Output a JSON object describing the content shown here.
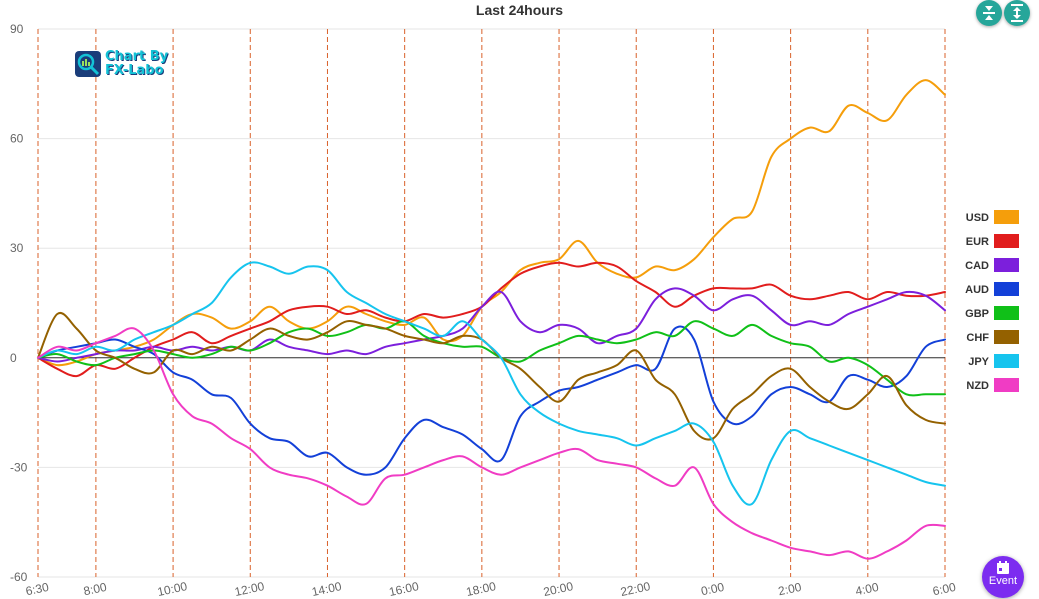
{
  "chart_data": {
    "type": "line",
    "title": "Last 24hours",
    "xlabel": "",
    "ylabel": "",
    "ylim": [
      -60,
      90
    ],
    "yticks": [
      -60,
      -30,
      0,
      30,
      60,
      90
    ],
    "grid": true,
    "legend_position": "right",
    "x": [
      0,
      0.5,
      1,
      1.5,
      2,
      2.5,
      3,
      3.5,
      4,
      4.5,
      5,
      5.5,
      6,
      6.5,
      7,
      7.5,
      8,
      8.5,
      9,
      9.5,
      10,
      10.5,
      11,
      11.5,
      12,
      12.5,
      13,
      13.5,
      14,
      14.5,
      15,
      15.5,
      16,
      16.5,
      17,
      17.5,
      18,
      18.5,
      19,
      19.5,
      20,
      20.5,
      21,
      21.5,
      22,
      22.5,
      23,
      23.5
    ],
    "x_tick_labels": [
      {
        "label": "6:30",
        "x": 0
      },
      {
        "label": "8:00",
        "x": 1.5
      },
      {
        "label": "10:00",
        "x": 3.5
      },
      {
        "label": "12:00",
        "x": 5.5
      },
      {
        "label": "14:00",
        "x": 7.5
      },
      {
        "label": "16:00",
        "x": 9.5
      },
      {
        "label": "18:00",
        "x": 11.5
      },
      {
        "label": "20:00",
        "x": 13.5
      },
      {
        "label": "22:00",
        "x": 15.5
      },
      {
        "label": "0:00",
        "x": 17.5
      },
      {
        "label": "2:00",
        "x": 19.5
      },
      {
        "label": "4:00",
        "x": 21.5
      },
      {
        "label": "6:00",
        "x": 23.5
      }
    ],
    "series": [
      {
        "name": "USD",
        "color": "#f59e0b",
        "values": [
          0,
          -2,
          -1,
          1,
          2,
          3,
          5,
          9,
          12,
          11,
          8,
          10,
          14,
          10,
          8,
          10,
          14,
          12,
          10,
          9,
          11,
          5,
          6,
          14,
          18,
          24,
          26,
          27,
          32,
          26,
          23,
          22,
          25,
          24,
          27,
          33,
          38,
          40,
          55,
          60,
          63,
          62,
          69,
          67,
          65,
          72,
          76,
          72
        ]
      },
      {
        "name": "EUR",
        "color": "#e11d1d",
        "values": [
          0,
          -3,
          -5,
          -2,
          -3,
          0,
          3,
          5,
          7,
          4,
          6,
          8,
          10,
          13,
          14,
          14,
          12,
          13,
          11,
          10,
          12,
          11,
          12,
          14,
          19,
          23,
          25,
          26,
          25,
          26,
          25,
          21,
          18,
          14,
          17,
          19,
          19,
          19,
          20,
          17,
          16,
          17,
          18,
          16,
          18,
          17,
          17,
          18
        ]
      },
      {
        "name": "CAD",
        "color": "#7c1fdc",
        "values": [
          0,
          -1,
          0,
          1,
          2,
          2,
          3,
          2,
          3,
          2,
          3,
          2,
          5,
          3,
          2,
          1,
          2,
          1,
          3,
          4,
          5,
          6,
          8,
          14,
          18,
          10,
          7,
          9,
          8,
          4,
          6,
          8,
          16,
          19,
          17,
          13,
          16,
          17,
          13,
          9,
          10,
          9,
          12,
          14,
          16,
          18,
          17,
          13
        ]
      },
      {
        "name": "AUD",
        "color": "#1340d8",
        "values": [
          0,
          2,
          3,
          4,
          5,
          3,
          1,
          -4,
          -6,
          -10,
          -11,
          -18,
          -22,
          -23,
          -27,
          -26,
          -30,
          -32,
          -30,
          -22,
          -17,
          -19,
          -21,
          -25,
          -28,
          -16,
          -12,
          -9,
          -8,
          -6,
          -4,
          -2,
          -3,
          8,
          5,
          -12,
          -18,
          -16,
          -10,
          -8,
          -10,
          -12,
          -5,
          -6,
          -8,
          -5,
          3,
          5
        ]
      },
      {
        "name": "GBP",
        "color": "#10c018",
        "values": [
          0,
          1,
          -1,
          -2,
          0,
          1,
          2,
          1,
          0,
          1,
          3,
          2,
          4,
          7,
          8,
          6,
          7,
          9,
          8,
          10,
          6,
          4,
          3,
          3,
          0,
          -1,
          2,
          4,
          6,
          5,
          4,
          5,
          7,
          6,
          10,
          8,
          6,
          9,
          6,
          4,
          3,
          -1,
          0,
          -2,
          -6,
          -10,
          -10,
          -10
        ]
      },
      {
        "name": "CHF",
        "color": "#946100",
        "values": [
          0,
          12,
          8,
          2,
          0,
          -3,
          -4,
          2,
          1,
          3,
          2,
          5,
          8,
          6,
          5,
          7,
          10,
          9,
          8,
          6,
          5,
          4,
          6,
          5,
          0,
          -3,
          -8,
          -12,
          -6,
          -4,
          -2,
          2,
          -6,
          -10,
          -20,
          -22,
          -14,
          -10,
          -5,
          -3,
          -8,
          -12,
          -14,
          -10,
          -5,
          -13,
          -17,
          -18
        ]
      },
      {
        "name": "JPY",
        "color": "#16c4ee",
        "values": [
          0,
          2,
          1,
          3,
          2,
          5,
          7,
          9,
          12,
          15,
          22,
          26,
          25,
          23,
          25,
          24,
          18,
          15,
          12,
          10,
          8,
          6,
          10,
          5,
          0,
          -10,
          -15,
          -18,
          -20,
          -21,
          -22,
          -24,
          -22,
          -20,
          -18,
          -23,
          -35,
          -40,
          -28,
          -20,
          -22,
          -24,
          -26,
          -28,
          -30,
          -32,
          -34,
          -35
        ]
      },
      {
        "name": "NZD",
        "color": "#f03cc4",
        "values": [
          0,
          3,
          2,
          4,
          6,
          8,
          2,
          -10,
          -16,
          -18,
          -22,
          -25,
          -30,
          -32,
          -33,
          -35,
          -38,
          -40,
          -33,
          -32,
          -30,
          -28,
          -27,
          -30,
          -32,
          -30,
          -28,
          -26,
          -25,
          -28,
          -29,
          -30,
          -33,
          -35,
          -30,
          -40,
          -45,
          -48,
          -50,
          -52,
          -53,
          -54,
          -53,
          -55,
          -53,
          -50,
          -46,
          -46
        ]
      }
    ]
  },
  "controls": {
    "event_label": "Event",
    "watermark_line1": "Chart By",
    "watermark_line2": "FX-Labo"
  }
}
